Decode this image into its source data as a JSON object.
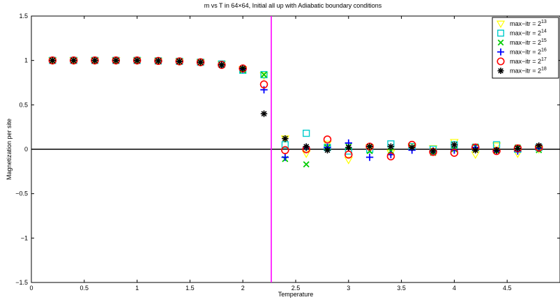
{
  "chart_data": {
    "type": "scatter",
    "title": "m vs T in 64×64, Initial all up with Adiabatic boundary conditions",
    "xlabel": "Temperature",
    "ylabel": "Magnetization per site",
    "xlim": [
      0,
      5
    ],
    "ylim": [
      -1.5,
      1.5
    ],
    "xticks": [
      0,
      0.5,
      1,
      1.5,
      2,
      2.5,
      3,
      3.5,
      4,
      4.5
    ],
    "yticks": [
      -1.5,
      -1,
      -0.5,
      0,
      0.5,
      1,
      1.5
    ],
    "xtick_labels": [
      "0",
      "0.5",
      "1",
      "1.5",
      "2",
      "2.5",
      "3",
      "3.5",
      "4",
      "4.5"
    ],
    "ytick_labels": [
      "−1.5",
      "−1",
      "−0.5",
      "0",
      "0.5",
      "1",
      "1.5"
    ],
    "grid": false,
    "legend_position": "top-right",
    "reference_lines": [
      {
        "orientation": "horizontal",
        "value": 0,
        "color": "#000000"
      },
      {
        "orientation": "vertical",
        "value": 2.269,
        "color": "#ff00ff"
      }
    ],
    "x": [
      0.2,
      0.4,
      0.6,
      0.8,
      1.0,
      1.2,
      1.4,
      1.6,
      1.8,
      2.0,
      2.2,
      2.4,
      2.6,
      2.8,
      3.0,
      3.2,
      3.4,
      3.6,
      3.8,
      4.0,
      4.2,
      4.4,
      4.6,
      4.8
    ],
    "series": [
      {
        "name": "max−itr = 2^13",
        "label_base": "max−itr = 2",
        "label_exp": "13",
        "marker": "triangle-down",
        "color": "#ffff00",
        "values": [
          1.0,
          1.0,
          1.0,
          1.0,
          1.0,
          0.995,
          0.99,
          0.98,
          0.96,
          0.9,
          0.83,
          0.12,
          -0.05,
          0.06,
          -0.12,
          0.02,
          -0.04,
          0.03,
          0.01,
          0.08,
          -0.06,
          0.04,
          -0.05,
          0.0
        ]
      },
      {
        "name": "max−itr = 2^14",
        "label_base": "max−itr = 2",
        "label_exp": "14",
        "marker": "square",
        "color": "#00cccc",
        "values": [
          1.0,
          1.0,
          1.0,
          1.0,
          1.0,
          0.995,
          0.99,
          0.98,
          0.96,
          0.89,
          0.84,
          0.05,
          0.18,
          0.02,
          -0.02,
          0.0,
          0.06,
          0.03,
          0.0,
          0.05,
          0.02,
          0.05,
          0.0,
          0.02
        ]
      },
      {
        "name": "max−itr = 2^15",
        "label_base": "max−itr = 2",
        "label_exp": "15",
        "marker": "x",
        "color": "#00cc00",
        "values": [
          1.0,
          1.0,
          1.0,
          1.0,
          1.0,
          0.995,
          0.99,
          0.98,
          0.95,
          0.89,
          0.84,
          -0.11,
          -0.17,
          0.02,
          0.03,
          -0.02,
          -0.02,
          0.02,
          -0.04,
          0.0,
          0.03,
          -0.02,
          0.02,
          -0.01
        ]
      },
      {
        "name": "max−itr = 2^16",
        "label_base": "max−itr = 2",
        "label_exp": "16",
        "marker": "plus",
        "color": "#0000ff",
        "values": [
          1.0,
          1.0,
          1.0,
          1.0,
          1.0,
          0.995,
          0.99,
          0.98,
          0.95,
          0.9,
          0.67,
          -0.09,
          0.02,
          0.02,
          0.07,
          -0.09,
          -0.06,
          -0.01,
          -0.02,
          -0.01,
          0.02,
          -0.02,
          -0.02,
          0.01
        ]
      },
      {
        "name": "max−itr = 2^17",
        "label_base": "max−itr = 2",
        "label_exp": "17",
        "marker": "circle",
        "color": "#ff0000",
        "values": [
          1.0,
          1.0,
          1.0,
          1.0,
          1.0,
          0.995,
          0.99,
          0.98,
          0.95,
          0.91,
          0.73,
          -0.01,
          0.0,
          0.11,
          -0.06,
          0.03,
          -0.08,
          0.05,
          -0.03,
          -0.04,
          0.02,
          -0.02,
          0.01,
          0.02
        ]
      },
      {
        "name": "max−itr = 2^18",
        "label_base": "max−itr = 2",
        "label_exp": "18",
        "marker": "asterisk",
        "color": "#000000",
        "values": [
          1.0,
          1.0,
          1.0,
          1.0,
          1.0,
          0.995,
          0.99,
          0.98,
          0.95,
          0.91,
          0.4,
          0.12,
          0.03,
          -0.01,
          0.02,
          0.03,
          0.03,
          0.02,
          -0.02,
          0.05,
          -0.01,
          -0.01,
          0.01,
          0.04
        ]
      }
    ]
  }
}
